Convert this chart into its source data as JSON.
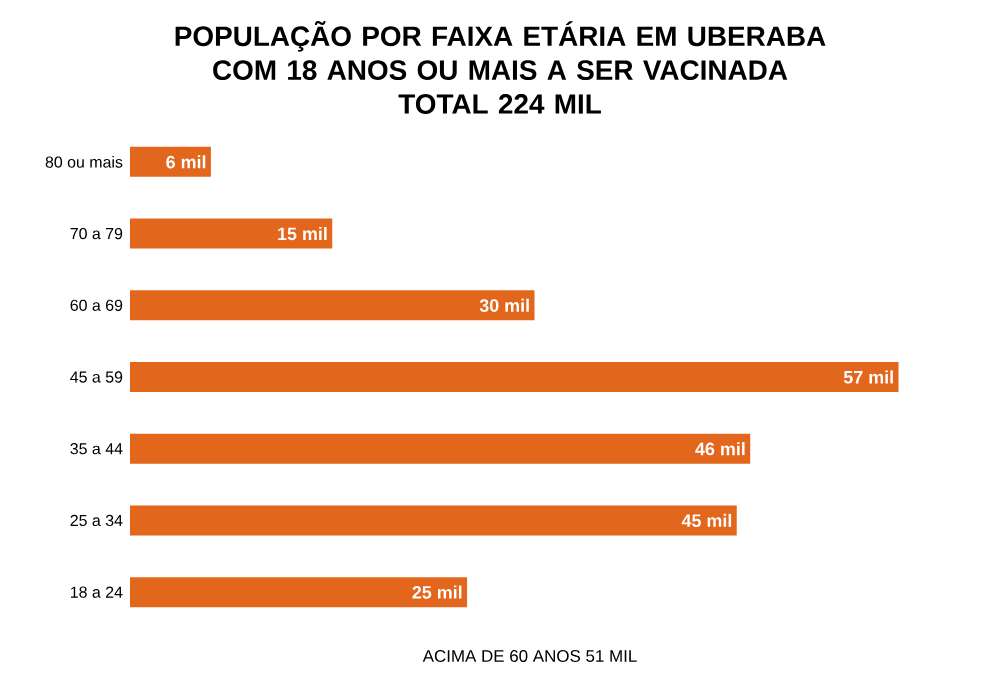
{
  "chart_data": {
    "type": "bar",
    "orientation": "horizontal",
    "title": "POPULAÇÃO POR FAIXA ETÁRIA EM UBERABA COM 18 ANOS OU MAIS A SER VACINADA",
    "subtitle": "TOTAL 224 MIL",
    "categories": [
      "80 ou mais",
      "70 a 79",
      "60 a 69",
      "45 a 59",
      "35 a 44",
      "25 a 34",
      "18 a 24"
    ],
    "values": [
      6,
      15,
      30,
      57,
      46,
      45,
      25
    ],
    "value_labels": [
      "6 mil",
      "15 mil",
      "30 mil",
      "57 mil",
      "46 mil",
      "45 mil",
      "25 mil"
    ],
    "color": "#e2661c",
    "tick_labels": "y",
    "annotations": [
      "ACIMA DE 60 ANOS 51 MIL"
    ]
  }
}
